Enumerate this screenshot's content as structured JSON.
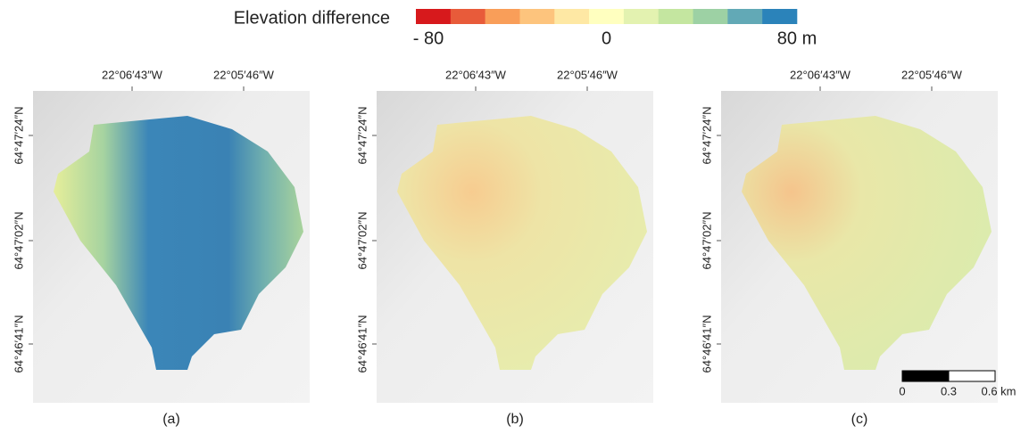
{
  "legend": {
    "title": "Elevation difference",
    "colors": [
      "#d7191c",
      "#e85b3a",
      "#f99e59",
      "#fdc47d",
      "#fee8a4",
      "#ffffbf",
      "#e3f2b0",
      "#c4e6a0",
      "#9dd1a4",
      "#62a9b6",
      "#2b83ba"
    ],
    "labels": [
      "- 80",
      "0",
      "80 m"
    ]
  },
  "panels": [
    {
      "label": "(a)",
      "x_labels": [
        "22°06′43″W",
        "22°05′46″W"
      ],
      "y_labels": [
        "64°47′24″N",
        "64°47′02″N",
        "64°46′41″N"
      ]
    },
    {
      "label": "(b)",
      "x_labels": [
        "22°06′43″W",
        "22°05′46″W"
      ],
      "y_labels": [
        "64°47′24″N",
        "64°47′02″N",
        "64°46′41″N"
      ]
    },
    {
      "label": "(c)",
      "x_labels": [
        "22°06′43″W",
        "22°05′46″W"
      ],
      "y_labels": [
        "64°47′24″N",
        "64°47′02″N",
        "64°46′41″N"
      ]
    }
  ],
  "scale_bar": {
    "labels": [
      "0",
      "0.3",
      "0.6 km"
    ]
  }
}
